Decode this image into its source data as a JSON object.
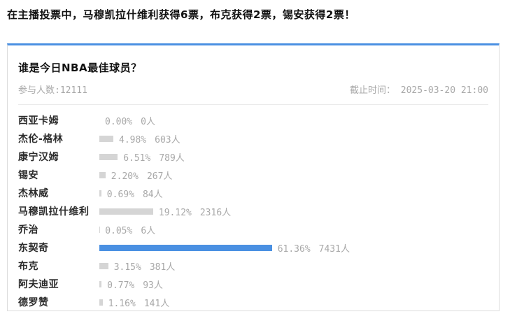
{
  "headline": "在主播投票中，马穆凯拉什维利获得6票，布克获得2票，锡安获得2票！",
  "poll": {
    "title": "谁是今日NBA最佳球员？",
    "participants": "参与人数:12111",
    "deadline": "截止时间： 2025-03-20 21:00"
  },
  "colors": {
    "accent_blue": "#4a90e2",
    "bar_gray": "#d5d5d5",
    "muted_text": "#a8a8a8"
  },
  "chart_data": {
    "type": "bar",
    "orientation": "horizontal",
    "title": "谁是今日NBA最佳球员？",
    "unit": "人",
    "value_format": "percent + count",
    "xlim_percent": [
      0,
      100
    ],
    "grid": false,
    "legend": "none",
    "categories": [
      "西亚卡姆",
      "杰伦-格林",
      "康宁汉姆",
      "锡安",
      "杰林威",
      "马穆凯拉什维利",
      "乔治",
      "东契奇",
      "布克",
      "阿夫迪亚",
      "德罗赞"
    ],
    "rows": [
      {
        "label": "西亚卡姆",
        "percent": 0.0,
        "count": 0,
        "highlighted": false
      },
      {
        "label": "杰伦-格林",
        "percent": 4.98,
        "count": 603,
        "highlighted": false
      },
      {
        "label": "康宁汉姆",
        "percent": 6.51,
        "count": 789,
        "highlighted": false
      },
      {
        "label": "锡安",
        "percent": 2.2,
        "count": 267,
        "highlighted": false
      },
      {
        "label": "杰林威",
        "percent": 0.69,
        "count": 84,
        "highlighted": false
      },
      {
        "label": "马穆凯拉什维利",
        "percent": 19.12,
        "count": 2316,
        "highlighted": false
      },
      {
        "label": "乔治",
        "percent": 0.05,
        "count": 6,
        "highlighted": false
      },
      {
        "label": "东契奇",
        "percent": 61.36,
        "count": 7431,
        "highlighted": true
      },
      {
        "label": "布克",
        "percent": 3.15,
        "count": 381,
        "highlighted": false
      },
      {
        "label": "阿夫迪亚",
        "percent": 0.77,
        "count": 93,
        "highlighted": false
      },
      {
        "label": "德罗赞",
        "percent": 1.16,
        "count": 141,
        "highlighted": false
      }
    ]
  }
}
